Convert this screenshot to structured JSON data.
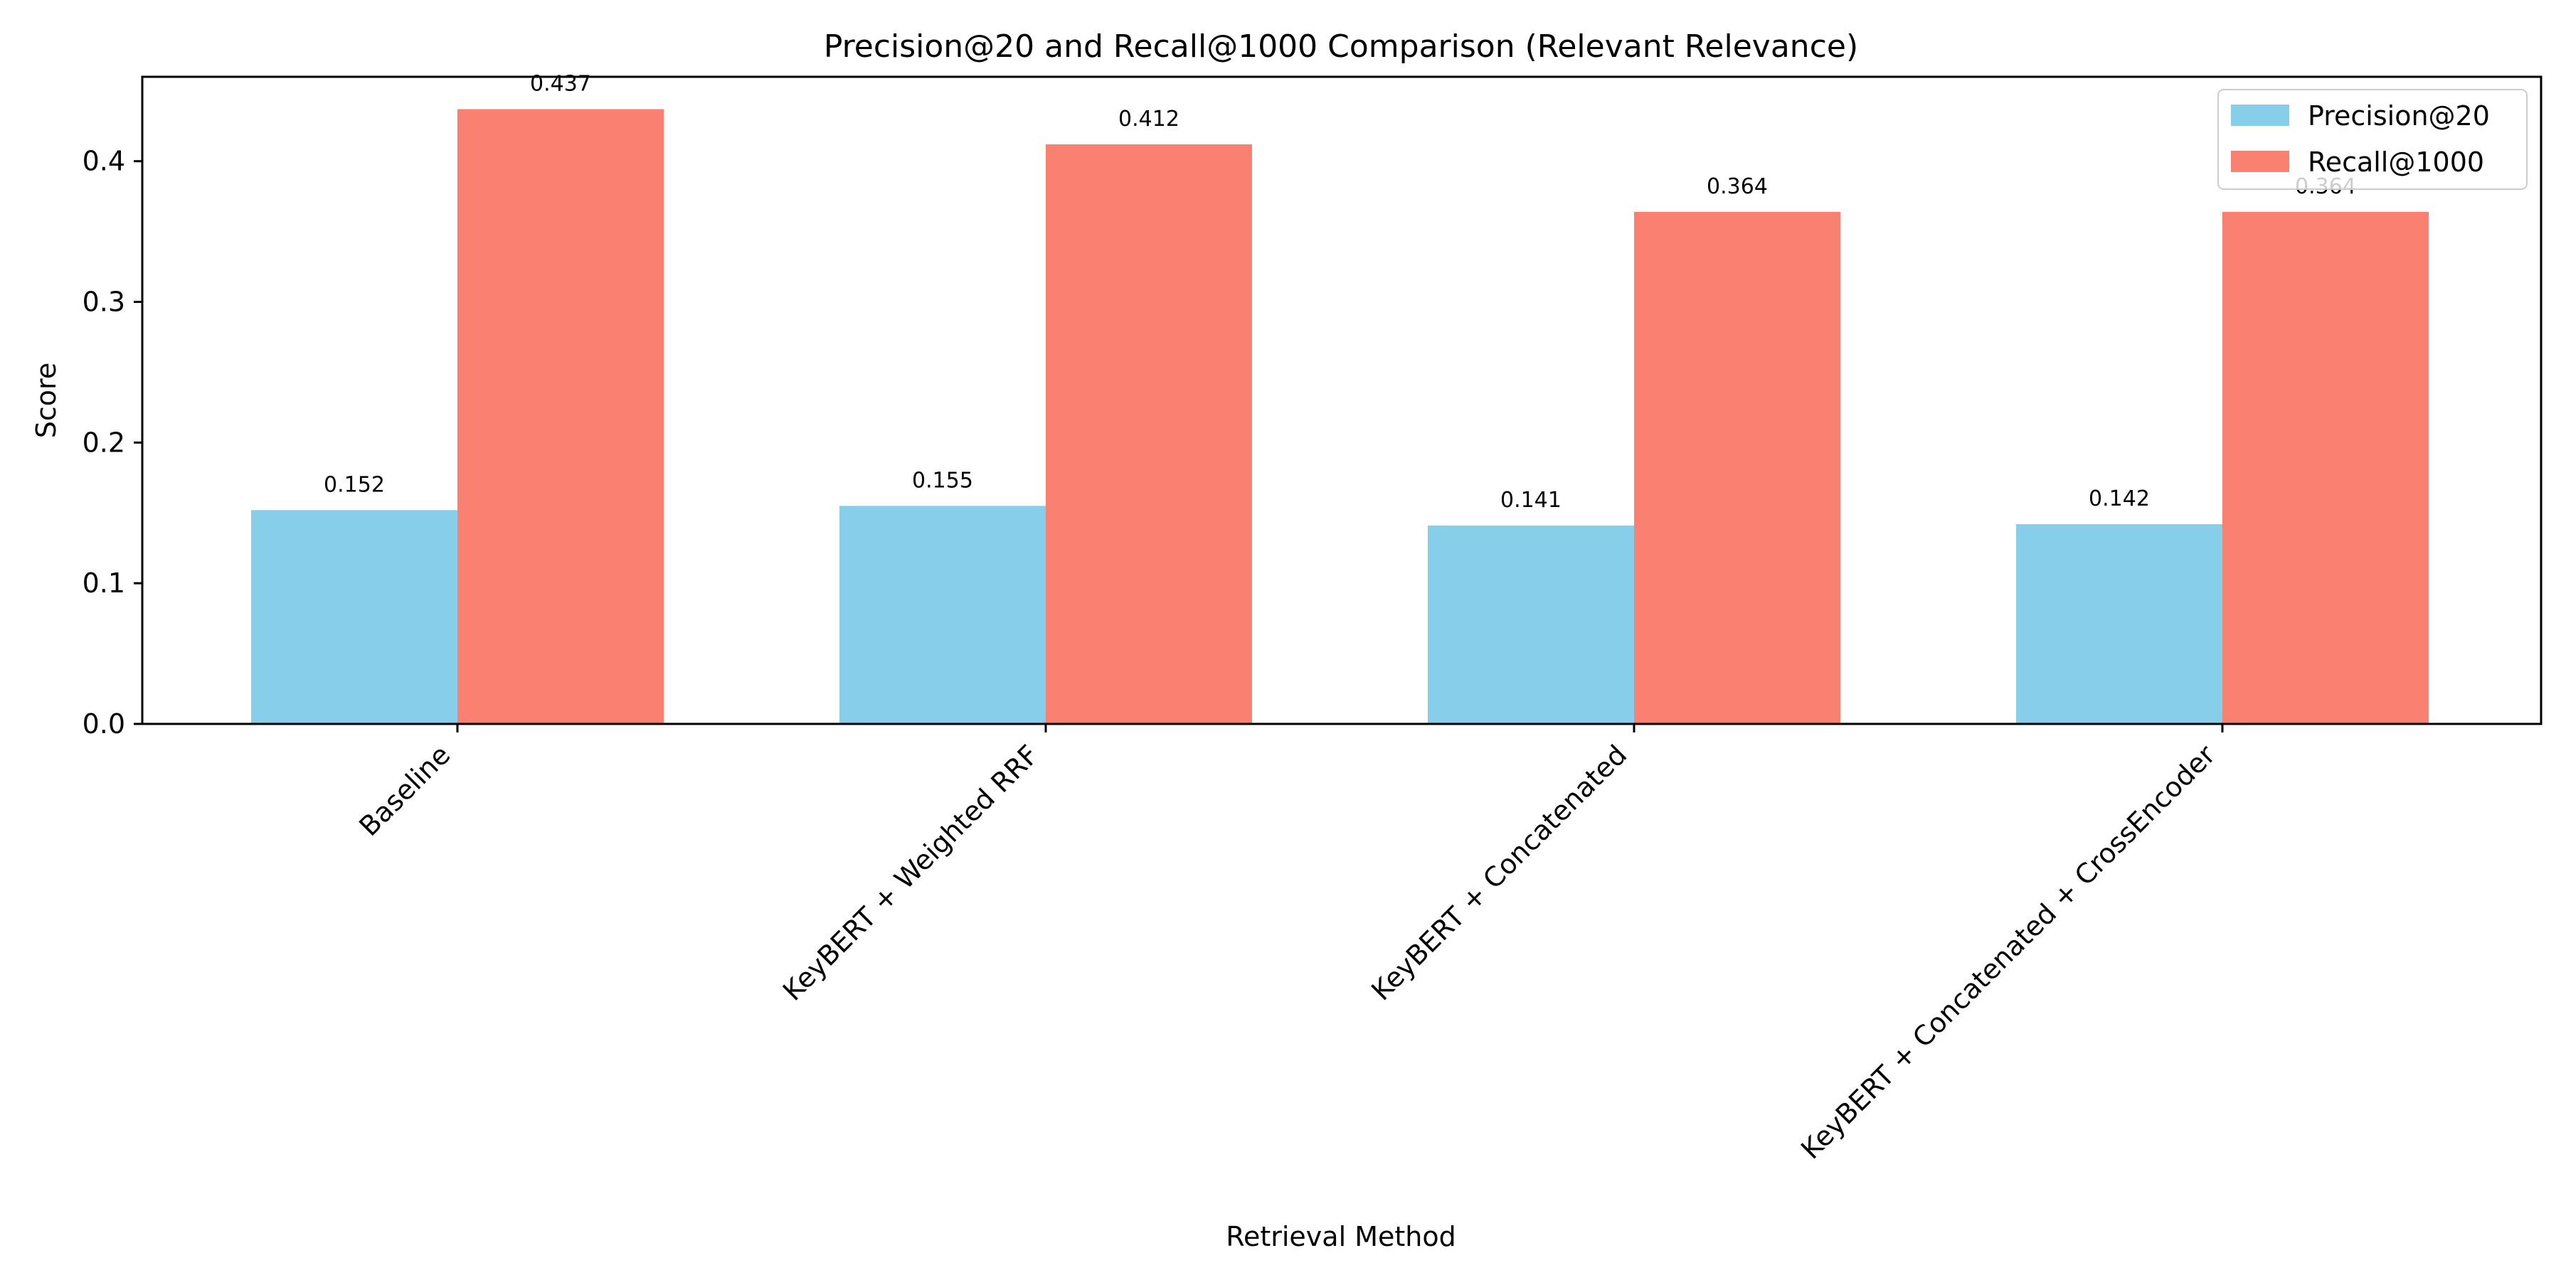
{
  "chart_data": {
    "type": "bar",
    "title": "Precision@20 and Recall@1000 Comparison (Relevant Relevance)",
    "xlabel": "Retrieval Method",
    "ylabel": "Score",
    "ylim": [
      0,
      0.46
    ],
    "yticks": [
      "0.0",
      "0.1",
      "0.2",
      "0.3",
      "0.4"
    ],
    "categories": [
      "Baseline",
      "KeyBERT + Weighted RRF",
      "KeyBERT + Concatenated",
      "KeyBERT + Concatenated + CrossEncoder"
    ],
    "series": [
      {
        "name": "Precision@20",
        "color": "#87CEEB",
        "values": [
          0.152,
          0.155,
          0.141,
          0.142
        ],
        "labels": [
          "0.152",
          "0.155",
          "0.141",
          "0.142"
        ]
      },
      {
        "name": "Recall@1000",
        "color": "#FA8072",
        "values": [
          0.437,
          0.412,
          0.364,
          0.364
        ],
        "labels": [
          "0.437",
          "0.412",
          "0.364",
          "0.364"
        ]
      }
    ],
    "legend_position": "top-right",
    "grid": false
  }
}
